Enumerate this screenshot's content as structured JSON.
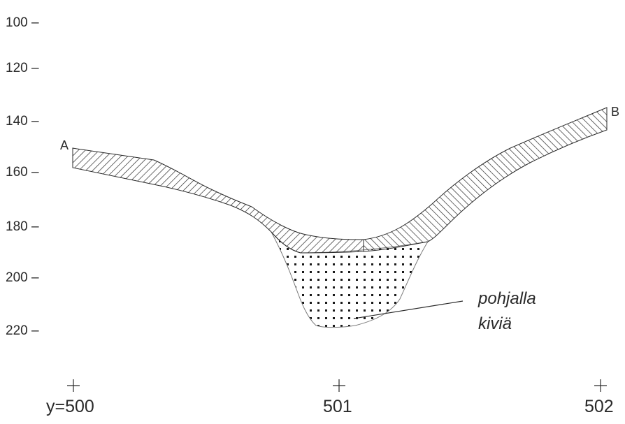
{
  "labels": {
    "point_a": "A",
    "point_b": "B",
    "annotation_line1": "pohjalla",
    "annotation_line2": "kiviä"
  },
  "y_axis": {
    "ticks": [
      "100 –",
      "120 –",
      "140 –",
      "160 –",
      "180 –",
      "200 –",
      "220 –"
    ]
  },
  "x_axis": {
    "ticks": [
      "y=500",
      "501",
      "502"
    ]
  },
  "colors": {
    "ink": "#2a2a2a",
    "background": "#ffffff"
  },
  "legend": {
    "hatched_band": "diagonal hatch",
    "dotted_fill": "dots"
  }
}
